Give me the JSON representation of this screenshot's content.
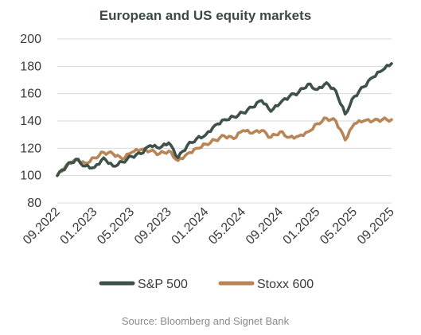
{
  "chart_data": {
    "type": "line",
    "title": "European and US equity markets",
    "source": "Source: Bloomberg and Signet Bank",
    "ylim": [
      80,
      200
    ],
    "yticks": [
      80,
      100,
      120,
      140,
      160,
      180,
      200
    ],
    "grid": true,
    "legend_position": "bottom",
    "x_range": [
      "2022-09",
      "2025-09"
    ],
    "x_tick_labels": [
      "09.2022",
      "01.2023",
      "05.2023",
      "09.2023",
      "01.2024",
      "05.2024",
      "09.2024",
      "01.2025",
      "05.2025",
      "09.2025"
    ],
    "x_tick_dates": [
      "2022-09",
      "2023-01",
      "2023-05",
      "2023-09",
      "2024-01",
      "2024-05",
      "2024-09",
      "2025-01",
      "2025-05",
      "2025-09"
    ],
    "series": [
      {
        "name": "S&P 500",
        "color": "#3f5249",
        "points": [
          [
            "2022-09",
            100
          ],
          [
            "2022-10",
            107
          ],
          [
            "2022-11",
            112
          ],
          [
            "2022-12",
            107
          ],
          [
            "2023-01",
            106
          ],
          [
            "2023-02",
            113
          ],
          [
            "2023-03",
            107
          ],
          [
            "2023-04",
            110
          ],
          [
            "2023-05",
            114
          ],
          [
            "2023-06",
            116
          ],
          [
            "2023-07",
            122
          ],
          [
            "2023-08",
            120
          ],
          [
            "2023-09",
            124
          ],
          [
            "2023-10",
            113
          ],
          [
            "2023-11",
            122
          ],
          [
            "2023-12",
            127
          ],
          [
            "2024-01",
            130
          ],
          [
            "2024-02",
            137
          ],
          [
            "2024-03",
            141
          ],
          [
            "2024-04",
            143
          ],
          [
            "2024-05",
            146
          ],
          [
            "2024-06",
            150
          ],
          [
            "2024-07",
            155
          ],
          [
            "2024-08",
            147
          ],
          [
            "2024-09",
            153
          ],
          [
            "2024-10",
            158
          ],
          [
            "2024-11",
            161
          ],
          [
            "2024-12",
            167
          ],
          [
            "2025-01",
            163
          ],
          [
            "2025-02",
            168
          ],
          [
            "2025-03",
            162
          ],
          [
            "2025-04",
            145
          ],
          [
            "2025-05",
            158
          ],
          [
            "2025-06",
            165
          ],
          [
            "2025-07",
            172
          ],
          [
            "2025-08",
            177
          ],
          [
            "2025-09",
            182
          ]
        ]
      },
      {
        "name": "Stoxx 600",
        "color": "#b88656",
        "points": [
          [
            "2022-09",
            100
          ],
          [
            "2022-10",
            108
          ],
          [
            "2022-11",
            112
          ],
          [
            "2022-12",
            109
          ],
          [
            "2023-01",
            113
          ],
          [
            "2023-02",
            117
          ],
          [
            "2023-03",
            116
          ],
          [
            "2023-04",
            112
          ],
          [
            "2023-05",
            117
          ],
          [
            "2023-06",
            119
          ],
          [
            "2023-07",
            118
          ],
          [
            "2023-08",
            116
          ],
          [
            "2023-09",
            118
          ],
          [
            "2023-10",
            111
          ],
          [
            "2023-11",
            116
          ],
          [
            "2023-12",
            120
          ],
          [
            "2024-01",
            123
          ],
          [
            "2024-02",
            126
          ],
          [
            "2024-03",
            129
          ],
          [
            "2024-04",
            127
          ],
          [
            "2024-05",
            133
          ],
          [
            "2024-06",
            131
          ],
          [
            "2024-07",
            133
          ],
          [
            "2024-08",
            128
          ],
          [
            "2024-09",
            132
          ],
          [
            "2024-10",
            128
          ],
          [
            "2024-11",
            129
          ],
          [
            "2024-12",
            132
          ],
          [
            "2025-01",
            138
          ],
          [
            "2025-02",
            142
          ],
          [
            "2025-03",
            140
          ],
          [
            "2025-04",
            126
          ],
          [
            "2025-05",
            138
          ],
          [
            "2025-06",
            140
          ],
          [
            "2025-07",
            140
          ],
          [
            "2025-08",
            141
          ],
          [
            "2025-09",
            141
          ]
        ]
      }
    ]
  }
}
